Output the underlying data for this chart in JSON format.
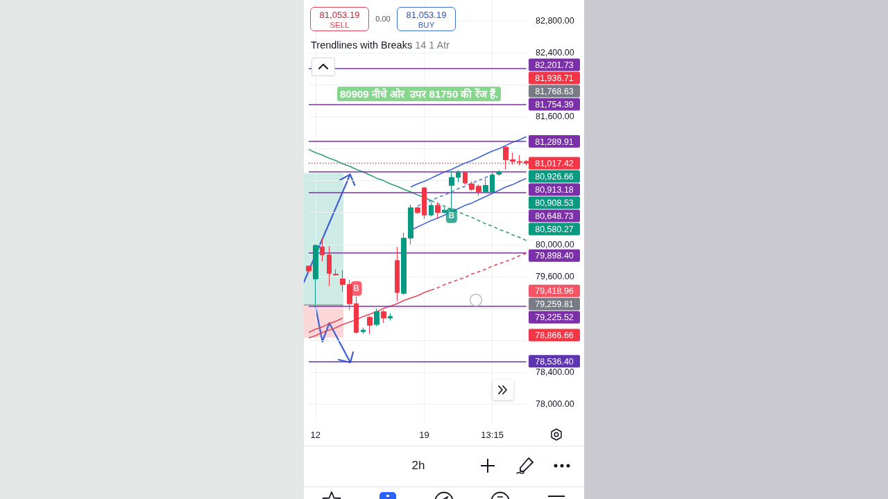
{
  "chart_data": {
    "type": "candlestick",
    "title": "Trendlines with Breaks",
    "subtitle": "14 1 Atr",
    "annotations": [
      "81,053.19",
      "SELL",
      "0.00",
      "81,053.19",
      "BUY",
      "80909 नीचे ओर  उपर 81750 की रेंज हैं.",
      "2h",
      "81,936.71",
      "81,768.63",
      "80,926.66",
      "80,908.53",
      "80,580.27",
      "79,418.96",
      "79,259.81",
      "78,866.66"
    ],
    "categories": [
      null,
      "12",
      null,
      null,
      null,
      null,
      null,
      null,
      null,
      null,
      null,
      null,
      null,
      null,
      null,
      null,
      null,
      "19",
      null,
      null,
      null,
      null,
      null,
      null,
      null,
      null,
      null,
      "13:15",
      null,
      null,
      null,
      null,
      null
    ],
    "series": [
      {
        "type": "candlestick",
        "ohlc": [
          [
            79730,
            79740,
            79650,
            79670
          ],
          [
            79570,
            80000,
            79220,
            79990
          ],
          [
            79970,
            80080,
            79790,
            79870
          ],
          [
            79870,
            79980,
            79480,
            79640
          ],
          [
            79630,
            79690,
            79610,
            79620
          ],
          [
            79570,
            79680,
            79410,
            79500
          ],
          [
            79500,
            79560,
            79180,
            79260
          ],
          [
            79260,
            79350,
            78890,
            78900
          ],
          [
            78910,
            78960,
            78880,
            78930
          ],
          [
            79090,
            79110,
            78880,
            78990
          ],
          [
            79000,
            79200,
            78980,
            79160
          ],
          [
            79160,
            79180,
            79020,
            79080
          ],
          [
            79080,
            79140,
            79050,
            79100
          ],
          [
            79800,
            79970,
            79290,
            79400
          ],
          [
            79390,
            80150,
            79370,
            80080
          ],
          [
            80080,
            80500,
            80000,
            80460
          ],
          [
            80460,
            80470,
            80380,
            80400
          ],
          [
            80710,
            80720,
            80320,
            80370
          ],
          [
            80370,
            80530,
            80350,
            80490
          ],
          [
            80490,
            80530,
            80330,
            80400
          ],
          [
            80400,
            80470,
            80390,
            80430
          ],
          [
            80740,
            80920,
            80410,
            80840
          ],
          [
            80840,
            80930,
            80780,
            80900
          ],
          [
            80900,
            80910,
            80750,
            80770
          ],
          [
            80760,
            80790,
            80670,
            80690
          ],
          [
            80730,
            80750,
            80610,
            80660
          ],
          [
            80660,
            80830,
            80650,
            80740
          ],
          [
            80660,
            80910,
            80640,
            80870
          ],
          [
            80880,
            80930,
            80860,
            80910
          ],
          [
            81220,
            81230,
            80940,
            81060
          ],
          [
            81060,
            81150,
            81000,
            81040
          ],
          [
            81040,
            81120,
            80990,
            81030
          ],
          [
            81040,
            81060,
            80990,
            81017.42
          ]
        ],
        "colors": [
          "#f23645",
          "#089981",
          "#f23645",
          "#f23645",
          "#f23645",
          "#f23645",
          "#f23645",
          "#f23645",
          "#089981",
          "#f23645",
          "#089981",
          "#f23645",
          "#089981",
          "#f23645",
          "#089981",
          "#089981",
          "#f23645",
          "#f23645",
          "#089981",
          "#f23645",
          "#089981",
          "#089981",
          "#089981",
          "#f23645",
          "#f23645",
          "#f23645",
          "#089981",
          "#089981",
          "#089981",
          "#f23645",
          "#f23645",
          "#f23645",
          "#f23645"
        ]
      },
      {
        "type": "line",
        "color": "#2e9e78",
        "line_style": "solid",
        "values": [
          81190,
          81150,
          81120,
          81080,
          81050,
          81010,
          80980,
          80940,
          80910,
          80870,
          80830,
          80800,
          80760,
          80730,
          80690,
          80660,
          80620,
          80590,
          80550,
          null,
          null,
          null,
          null,
          null,
          null,
          null,
          null,
          null,
          null,
          null,
          null,
          null,
          null
        ]
      },
      {
        "type": "line",
        "color": "#2e9e78",
        "line_style": "dashed",
        "values": [
          null,
          null,
          null,
          null,
          null,
          null,
          null,
          null,
          null,
          null,
          null,
          null,
          null,
          null,
          null,
          null,
          null,
          null,
          80550,
          80510,
          80480,
          80440,
          80410,
          80370,
          80340,
          80300,
          80260,
          80230,
          80190,
          80160,
          80120,
          80090,
          80050
        ]
      },
      {
        "type": "line",
        "color": "#e04b5a",
        "line_style": "solid",
        "values": [
          78830,
          78860,
          78900,
          78930,
          78960,
          79000,
          79030,
          79060,
          79100,
          79130,
          79160,
          79200,
          79230,
          79260,
          79300,
          79330,
          79360,
          79400,
          79430,
          null,
          null,
          null,
          null,
          null,
          null,
          null,
          null,
          null,
          null,
          null,
          null,
          null,
          null
        ]
      },
      {
        "type": "line",
        "color": "#e04b5a",
        "line_style": "dashed",
        "values": [
          null,
          null,
          null,
          null,
          null,
          null,
          null,
          null,
          null,
          null,
          null,
          null,
          null,
          null,
          null,
          null,
          null,
          null,
          79430,
          79460,
          79500,
          79530,
          79560,
          79590,
          79630,
          79660,
          79690,
          79730,
          79760,
          79790,
          79820,
          79860,
          79890
        ]
      },
      {
        "type": "line",
        "color": "#e04b5a",
        "line_style": "solid",
        "values": [
          78900,
          78940,
          78970,
          79010,
          79040,
          79080,
          null,
          null,
          null,
          null,
          null,
          null,
          null,
          null,
          null,
          null,
          null,
          null,
          null,
          null,
          null,
          null,
          null,
          null,
          null,
          null,
          null,
          null,
          null,
          null,
          null,
          null,
          null
        ]
      },
      {
        "type": "line",
        "color": "#5a7bd6",
        "line_style": "dashed",
        "values": [
          null,
          null,
          null,
          null,
          null,
          null,
          null,
          null,
          null,
          null,
          null,
          null,
          null,
          null,
          null,
          null,
          80480,
          80520,
          80550,
          80590,
          80620,
          80660,
          80700,
          80730,
          80770,
          80800,
          80840,
          80870,
          80910,
          null,
          null,
          null,
          null
        ]
      },
      {
        "type": "line",
        "color": "#3d63d8",
        "line_style": "solid",
        "values": [
          null,
          null,
          null,
          null,
          null,
          null,
          null,
          null,
          null,
          null,
          null,
          null,
          null,
          null,
          null,
          80720,
          80760,
          80790,
          80830,
          80870,
          80910,
          80940,
          80980,
          81020,
          81050,
          81090,
          81130,
          81170,
          81200,
          81240,
          81280,
          81310,
          81350
        ]
      },
      {
        "type": "line",
        "color": "#3d63d8",
        "line_style": "solid",
        "values": [
          null,
          null,
          null,
          null,
          null,
          null,
          null,
          null,
          null,
          null,
          null,
          null,
          null,
          null,
          null,
          80180,
          80220,
          80260,
          80300,
          80330,
          80370,
          80410,
          80450,
          80490,
          80520,
          80560,
          80600,
          80640,
          80680,
          80720,
          80750,
          80790,
          80830
        ]
      },
      {
        "type": "scatter",
        "color": "#f23645",
        "marker": "square",
        "values": [
          null,
          null,
          null,
          null,
          null,
          null,
          null,
          79450,
          null,
          null,
          null,
          null,
          null,
          null,
          null,
          null,
          null,
          null,
          null,
          null,
          null,
          null,
          null,
          null,
          null,
          null,
          null,
          null,
          null,
          null,
          null,
          null,
          null
        ],
        "value_labels": [
          null,
          null,
          null,
          null,
          null,
          null,
          null,
          "B",
          null,
          null,
          null,
          null,
          null,
          null,
          null,
          null,
          null,
          null,
          null,
          null,
          null,
          null,
          null,
          null,
          null,
          null,
          null,
          null,
          null,
          null,
          null,
          null,
          null
        ]
      },
      {
        "type": "scatter",
        "color": "#089981",
        "marker": "square",
        "values": [
          null,
          null,
          null,
          null,
          null,
          null,
          null,
          null,
          null,
          null,
          null,
          null,
          null,
          null,
          null,
          null,
          null,
          null,
          null,
          null,
          null,
          80360,
          null,
          null,
          null,
          null,
          null,
          null,
          null,
          null,
          null,
          null,
          null
        ],
        "value_labels": [
          null,
          null,
          null,
          null,
          null,
          null,
          null,
          null,
          null,
          null,
          null,
          null,
          null,
          null,
          null,
          null,
          null,
          null,
          null,
          null,
          null,
          "B",
          null,
          null,
          null,
          null,
          null,
          null,
          null,
          null,
          null,
          null,
          null
        ]
      }
    ],
    "ylim": [
      77770,
      83060
    ],
    "yticks": [
      {
        "value": 78000,
        "label": "78,000.00"
      },
      {
        "value": 78400,
        "label": "78,400.00"
      },
      {
        "value": 78800,
        "label": null
      },
      {
        "value": 79200,
        "label": null
      },
      {
        "value": 79600,
        "label": "79,600.00"
      },
      {
        "value": 80000,
        "label": "80,000.00"
      },
      {
        "value": 80400,
        "label": null
      },
      {
        "value": 80800,
        "label": null
      },
      {
        "value": 81200,
        "label": null
      },
      {
        "value": 81600,
        "label": "81,600.00"
      },
      {
        "value": 82000,
        "label": null
      },
      {
        "value": 82400,
        "label": "82,400.00"
      },
      {
        "value": 82800,
        "label": "82,800.00"
      }
    ],
    "grid": true,
    "ref_lines": [
      {
        "axis": "y",
        "value": 82201.73,
        "label": "82,201.73",
        "color": "#7b2fa8",
        "line_style": "solid"
      },
      {
        "axis": "y",
        "value": 81754.39,
        "label": "81,754.39",
        "color": "#7b2fa8",
        "line_style": "solid"
      },
      {
        "axis": "y",
        "value": 81289.91,
        "label": "81,289.91",
        "color": "#7b2fa8",
        "line_style": "solid"
      },
      {
        "axis": "y",
        "value": 81017.42,
        "label": "81,017.42",
        "color": "#f23645",
        "line_style": "dotted"
      },
      {
        "axis": "y",
        "value": 80913.18,
        "label": "80,913.18",
        "color": "#7b2fa8",
        "line_style": "solid"
      },
      {
        "axis": "y",
        "value": 80648.73,
        "label": "80,648.73",
        "color": "#7b2fa8",
        "line_style": "solid"
      },
      {
        "axis": "y",
        "value": 79898.4,
        "label": "79,898.40",
        "color": "#7b2fa8",
        "line_style": "solid"
      },
      {
        "axis": "y",
        "value": 79225.52,
        "label": "79,225.52",
        "color": "#7b2fa8",
        "line_style": "solid"
      },
      {
        "axis": "y",
        "value": 78536.4,
        "label": "78,536.40",
        "color": "#5e35b1",
        "line_style": "solid"
      }
    ]
  }
}
